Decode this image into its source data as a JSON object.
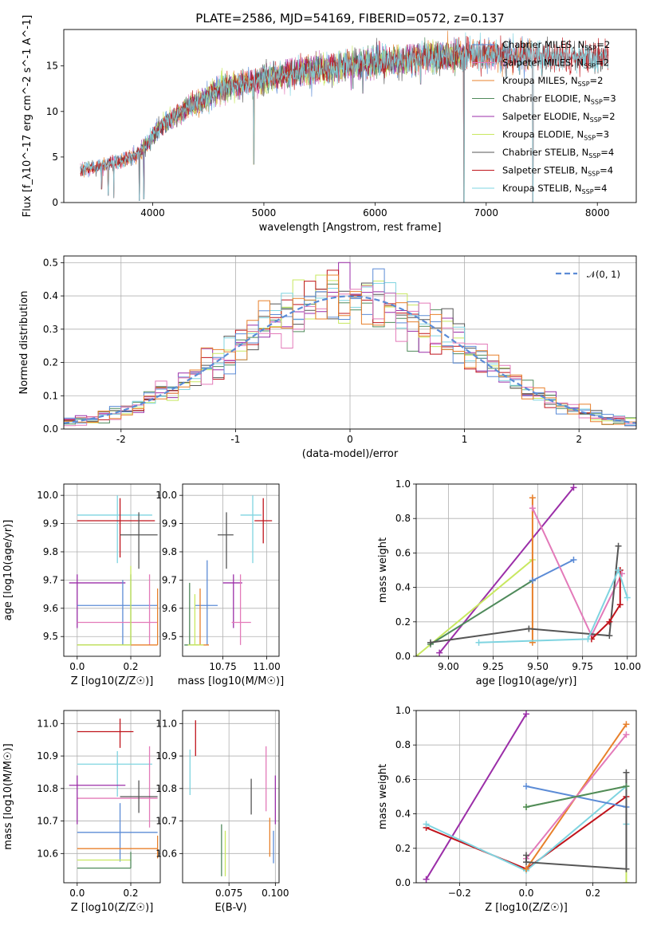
{
  "figure": {
    "title": "PLATE=2586, MJD=54169, FIBERID=0572, z=0.137"
  },
  "colors": {
    "blue": "#5b8bd6",
    "orange": "#e8802b",
    "green": "#4f8a5b",
    "red": "#c0141c",
    "purple": "#9b2ea8",
    "brown": "#8b5a2b",
    "pink": "#e37ab9",
    "gray": "#555555",
    "olive": "#c8e860",
    "cyan": "#7fd4e0"
  },
  "chart_data": [
    {
      "id": "spectrum",
      "type": "line",
      "xlabel": "wavelength [Angstrom, rest frame]",
      "ylabel": "Flux [f_λ10^-17 erg cm^-2 s^-1 A^-1]",
      "xlim": [
        3200,
        8350
      ],
      "ylim": [
        0,
        19
      ],
      "xticks": [
        4000,
        5000,
        6000,
        7000,
        8000
      ],
      "yticks": [
        0,
        5,
        10,
        15
      ],
      "legend_position": "top-right",
      "series": [
        {
          "name": "Chabrier MILES, N_SSP=2",
          "color_key": "blue",
          "x_range": [
            3350,
            7400
          ]
        },
        {
          "name": "Salpeter MILES, N_SSP=2",
          "color_key": "pink",
          "x_range": [
            3350,
            7400
          ]
        },
        {
          "name": "Kroupa MILES, N_SSP=2",
          "color_key": "orange",
          "x_range": [
            3350,
            7400
          ]
        },
        {
          "name": "Chabrier ELODIE, N_SSP=3",
          "color_key": "green",
          "x_range": [
            3900,
            6800
          ]
        },
        {
          "name": "Salpeter ELODIE, N_SSP=2",
          "color_key": "purple",
          "x_range": [
            3900,
            6800
          ]
        },
        {
          "name": "Kroupa ELODIE, N_SSP=3",
          "color_key": "olive",
          "x_range": [
            3900,
            6800
          ]
        },
        {
          "name": "Chabrier STELIB, N_SSP=4",
          "color_key": "gray",
          "x_range": [
            3350,
            8100
          ]
        },
        {
          "name": "Salpeter STELIB, N_SSP=4",
          "color_key": "red",
          "x_range": [
            3350,
            8100
          ]
        },
        {
          "name": "Kroupa STELIB, N_SSP=4",
          "color_key": "cyan",
          "x_range": [
            3350,
            8100
          ]
        }
      ],
      "continuum": {
        "x": [
          3350,
          3500,
          3700,
          3850,
          3950,
          4050,
          4300,
          4600,
          5000,
          5500,
          6000,
          6500,
          7000,
          7500,
          8000,
          8100
        ],
        "y": [
          3.6,
          3.9,
          4.4,
          5.2,
          6.4,
          8.2,
          10.3,
          12.3,
          13.6,
          14.7,
          15.4,
          16.0,
          16.2,
          16.1,
          15.9,
          15.9
        ]
      },
      "spikes": [
        {
          "x": 3540,
          "y": 1.5
        },
        {
          "x": 3600,
          "y": 0.8
        },
        {
          "x": 3650,
          "y": 0.5
        },
        {
          "x": 3880,
          "y": 0.2
        },
        {
          "x": 3920,
          "y": 0.4
        },
        {
          "x": 4910,
          "y": 4.2
        },
        {
          "x": 5800,
          "y": 12.5
        },
        {
          "x": 5890,
          "y": 12.0
        },
        {
          "x": 6410,
          "y": 13.0
        },
        {
          "x": 6800,
          "y": 0.0
        },
        {
          "x": 7180,
          "y": 13.6
        },
        {
          "x": 7420,
          "y": 0.0
        }
      ]
    },
    {
      "id": "residuals",
      "type": "histogram",
      "xlabel": "(data-model)/error",
      "ylabel": "Normed distribution",
      "xlim": [
        -2.5,
        2.5
      ],
      "ylim": [
        0,
        0.52
      ],
      "xticks": [
        -2,
        -1,
        0,
        1,
        2
      ],
      "yticks": [
        0.0,
        0.1,
        0.2,
        0.3,
        0.4,
        0.5
      ],
      "bin_width": 0.1,
      "bin_start": -2.5,
      "reference_curve": {
        "name": "𝒩(0, 1)",
        "color_key": "blue",
        "mean": 0,
        "sigma": 1
      },
      "legend_position": "top-right"
    },
    {
      "id": "age_vs_Z",
      "type": "errorbar",
      "xlabel": "Z [log10(Z/Z☉)]",
      "ylabel": "age  [log10(age/yr)]",
      "xlim": [
        -0.05,
        0.31
      ],
      "ylim": [
        9.43,
        10.04
      ],
      "xticks": [
        0.0,
        0.2
      ],
      "yticks": [
        9.5,
        9.6,
        9.7,
        9.8,
        9.9,
        10.0
      ],
      "points": [
        {
          "color_key": "cyan",
          "x": 0.15,
          "xerr": [
            0.15,
            0.13
          ],
          "y": 9.93,
          "yerr": [
            0.17,
            0.07
          ]
        },
        {
          "color_key": "red",
          "x": 0.16,
          "xerr": [
            0.16,
            0.13
          ],
          "y": 9.91,
          "yerr": [
            0.13,
            0.08
          ]
        },
        {
          "color_key": "gray",
          "x": 0.23,
          "xerr": [
            0.07,
            0.07
          ],
          "y": 9.86,
          "yerr": [
            0.12,
            0.08
          ]
        },
        {
          "color_key": "purple",
          "x": 0.0,
          "xerr": [
            0.03,
            0.18
          ],
          "y": 9.69,
          "yerr": [
            0.16,
            0.03
          ]
        },
        {
          "color_key": "blue",
          "x": 0.17,
          "xerr": [
            0.17,
            0.13
          ],
          "y": 9.61,
          "yerr": [
            0.14,
            0.09
          ]
        },
        {
          "color_key": "pink",
          "x": 0.27,
          "xerr": [
            0.27,
            0.03
          ],
          "y": 9.55,
          "yerr": [
            0.08,
            0.17
          ]
        },
        {
          "color_key": "orange",
          "x": 0.3,
          "xerr": [
            0.3,
            0.0
          ],
          "y": 9.47,
          "yerr": [
            0.0,
            0.2
          ]
        },
        {
          "color_key": "green",
          "x": 0.2,
          "xerr": [
            0.2,
            0.0
          ],
          "y": 9.47,
          "yerr": [
            0.0,
            0.25
          ]
        },
        {
          "color_key": "olive",
          "x": 0.2,
          "xerr": [
            0.2,
            0.0
          ],
          "y": 9.47,
          "yerr": [
            0.0,
            0.28
          ]
        }
      ]
    },
    {
      "id": "age_vs_mass",
      "type": "errorbar",
      "xlabel": "mass [log10(M/M☉)]",
      "ylabel": "",
      "xlim": [
        10.52,
        11.07
      ],
      "ylim": [
        9.43,
        10.04
      ],
      "xticks": [
        10.75,
        11.0
      ],
      "yticks": [
        9.5,
        9.6,
        9.7,
        9.8,
        9.9,
        10.0
      ],
      "points": [
        {
          "color_key": "cyan",
          "x": 10.92,
          "xerr": [
            0.07,
            0.05
          ],
          "y": 9.93,
          "yerr": [
            0.17,
            0.07
          ]
        },
        {
          "color_key": "red",
          "x": 10.98,
          "xerr": [
            0.05,
            0.05
          ],
          "y": 9.91,
          "yerr": [
            0.08,
            0.08
          ]
        },
        {
          "color_key": "gray",
          "x": 10.77,
          "xerr": [
            0.05,
            0.04
          ],
          "y": 9.86,
          "yerr": [
            0.12,
            0.08
          ]
        },
        {
          "color_key": "purple",
          "x": 10.81,
          "xerr": [
            0.06,
            0.05
          ],
          "y": 9.69,
          "yerr": [
            0.16,
            0.03
          ]
        },
        {
          "color_key": "blue",
          "x": 10.66,
          "xerr": [
            0.07,
            0.06
          ],
          "y": 9.61,
          "yerr": [
            0.14,
            0.16
          ]
        },
        {
          "color_key": "pink",
          "x": 10.85,
          "xerr": [
            0.05,
            0.06
          ],
          "y": 9.55,
          "yerr": [
            0.08,
            0.17
          ]
        },
        {
          "color_key": "orange",
          "x": 10.62,
          "xerr": [
            0.05,
            0.05
          ],
          "y": 9.47,
          "yerr": [
            0.0,
            0.2
          ]
        },
        {
          "color_key": "green",
          "x": 10.56,
          "xerr": [
            0.03,
            0.05
          ],
          "y": 9.47,
          "yerr": [
            0.0,
            0.22
          ]
        },
        {
          "color_key": "olive",
          "x": 10.59,
          "xerr": [
            0.04,
            0.05
          ],
          "y": 9.47,
          "yerr": [
            0.0,
            0.18
          ]
        }
      ]
    },
    {
      "id": "weight_vs_age",
      "type": "line",
      "xlabel": "age  [log10(age/yr)]",
      "ylabel": "mass weight",
      "xlim": [
        8.82,
        10.05
      ],
      "ylim": [
        0,
        1.0
      ],
      "xticks": [
        9.0,
        9.25,
        9.5,
        9.75,
        10.0
      ],
      "yticks": [
        0.0,
        0.2,
        0.4,
        0.6,
        0.8,
        1.0
      ],
      "series": [
        {
          "color_key": "purple",
          "x": [
            8.95,
            9.7
          ],
          "y": [
            0.02,
            0.98
          ]
        },
        {
          "color_key": "olive",
          "x": [
            8.82,
            9.47
          ],
          "y": [
            0.0,
            0.56
          ]
        },
        {
          "color_key": "green",
          "x": [
            8.9,
            9.47
          ],
          "y": [
            0.07,
            0.44
          ]
        },
        {
          "color_key": "orange",
          "x": [
            9.47,
            9.47
          ],
          "y": [
            0.08,
            0.92
          ]
        },
        {
          "color_key": "blue",
          "x": [
            9.47,
            9.7
          ],
          "y": [
            0.44,
            0.56
          ]
        },
        {
          "color_key": "pink",
          "x": [
            9.47,
            9.8,
            9.97
          ],
          "y": [
            0.86,
            0.12,
            0.48
          ]
        },
        {
          "color_key": "gray",
          "x": [
            8.9,
            9.45,
            9.9,
            9.95
          ],
          "y": [
            0.08,
            0.16,
            0.12,
            0.64
          ]
        },
        {
          "color_key": "red",
          "x": [
            9.8,
            9.9,
            9.96,
            9.96
          ],
          "y": [
            0.1,
            0.2,
            0.3,
            0.5
          ]
        },
        {
          "color_key": "cyan",
          "x": [
            9.17,
            9.78,
            9.95,
            10.0
          ],
          "y": [
            0.08,
            0.1,
            0.5,
            0.34
          ]
        }
      ]
    },
    {
      "id": "mass_vs_Z",
      "type": "errorbar",
      "xlabel": "Z [log10(Z/Z☉)]",
      "ylabel": "mass [log10(M/M☉)]",
      "xlim": [
        -0.05,
        0.31
      ],
      "ylim": [
        10.51,
        11.04
      ],
      "xticks": [
        0.0,
        0.2
      ],
      "yticks": [
        10.6,
        10.7,
        10.8,
        10.9,
        11.0
      ],
      "points": [
        {
          "color_key": "red",
          "x": 0.16,
          "xerr": [
            0.16,
            0.05
          ],
          "y": 10.975,
          "yerr": [
            0.05,
            0.04
          ]
        },
        {
          "color_key": "cyan",
          "x": 0.15,
          "xerr": [
            0.15,
            0.13
          ],
          "y": 10.875,
          "yerr": [
            0.1,
            0.04
          ]
        },
        {
          "color_key": "pink",
          "x": 0.27,
          "xerr": [
            0.27,
            0.03
          ],
          "y": 10.77,
          "yerr": [
            0.09,
            0.16
          ]
        },
        {
          "color_key": "purple",
          "x": 0.0,
          "xerr": [
            0.03,
            0.18
          ],
          "y": 10.81,
          "yerr": [
            0.12,
            0.03
          ]
        },
        {
          "color_key": "gray",
          "x": 0.23,
          "xerr": [
            0.07,
            0.07
          ],
          "y": 10.775,
          "yerr": [
            0.05,
            0.05
          ]
        },
        {
          "color_key": "blue",
          "x": 0.16,
          "xerr": [
            0.16,
            0.14
          ],
          "y": 10.665,
          "yerr": [
            0.09,
            0.09
          ]
        },
        {
          "color_key": "orange",
          "x": 0.3,
          "xerr": [
            0.3,
            0.0
          ],
          "y": 10.615,
          "yerr": [
            0.03,
            0.04
          ]
        },
        {
          "color_key": "olive",
          "x": 0.2,
          "xerr": [
            0.2,
            0.0
          ],
          "y": 10.58,
          "yerr": [
            0.0,
            0.0
          ]
        },
        {
          "color_key": "green",
          "x": 0.2,
          "xerr": [
            0.2,
            0.0
          ],
          "y": 10.555,
          "yerr": [
            0.0,
            0.05
          ]
        }
      ]
    },
    {
      "id": "mass_vs_EBV",
      "type": "errorbar",
      "xlabel": "E(B-V)",
      "ylabel": "",
      "xlim": [
        0.05,
        0.102
      ],
      "ylim": [
        10.51,
        11.04
      ],
      "xticks": [
        0.075,
        0.1
      ],
      "yticks": [
        10.6,
        10.7,
        10.8,
        10.9,
        11.0
      ],
      "points": [
        {
          "color_key": "red",
          "x": 0.057,
          "xerr": [
            0,
            0
          ],
          "y": 10.96,
          "yerr": [
            0.06,
            0.05
          ]
        },
        {
          "color_key": "cyan",
          "x": 0.054,
          "xerr": [
            0,
            0
          ],
          "y": 10.85,
          "yerr": [
            0.07,
            0.07
          ]
        },
        {
          "color_key": "gray",
          "x": 0.087,
          "xerr": [
            0,
            0
          ],
          "y": 10.77,
          "yerr": [
            0.05,
            0.06
          ]
        },
        {
          "color_key": "pink",
          "x": 0.095,
          "xerr": [
            0,
            0
          ],
          "y": 10.83,
          "yerr": [
            0.1,
            0.1
          ]
        },
        {
          "color_key": "purple",
          "x": 0.1,
          "xerr": [
            0,
            0
          ],
          "y": 10.77,
          "yerr": [
            0.08,
            0.07
          ]
        },
        {
          "color_key": "orange",
          "x": 0.097,
          "xerr": [
            0,
            0
          ],
          "y": 10.65,
          "yerr": [
            0.06,
            0.06
          ]
        },
        {
          "color_key": "blue",
          "x": 0.099,
          "xerr": [
            0,
            0
          ],
          "y": 10.62,
          "yerr": [
            0.05,
            0.05
          ]
        },
        {
          "color_key": "green",
          "x": 0.071,
          "xerr": [
            0,
            0
          ],
          "y": 10.61,
          "yerr": [
            0.08,
            0.08
          ]
        },
        {
          "color_key": "olive",
          "x": 0.073,
          "xerr": [
            0,
            0
          ],
          "y": 10.6,
          "yerr": [
            0.07,
            0.07
          ]
        }
      ]
    },
    {
      "id": "weight_vs_Z",
      "type": "line",
      "xlabel": "Z [log10(Z/Z☉)]",
      "ylabel": "mass weight",
      "xlim": [
        -0.33,
        0.33
      ],
      "ylim": [
        0,
        1.0
      ],
      "xticks": [
        -0.2,
        0.0,
        0.2
      ],
      "yticks": [
        0.0,
        0.2,
        0.4,
        0.6,
        0.8,
        1.0
      ],
      "series": [
        {
          "color_key": "purple",
          "x": [
            -0.3,
            0.0
          ],
          "y": [
            0.02,
            0.98
          ]
        },
        {
          "color_key": "red",
          "x": [
            -0.3,
            0.0,
            0.3
          ],
          "y": [
            0.32,
            0.08,
            0.5
          ]
        },
        {
          "color_key": "cyan",
          "x": [
            -0.3,
            0.0,
            0.3,
            0.3
          ],
          "y": [
            0.34,
            0.07,
            0.56,
            0.34
          ]
        },
        {
          "color_key": "blue",
          "x": [
            0.0,
            0.3
          ],
          "y": [
            0.56,
            0.44
          ]
        },
        {
          "color_key": "olive",
          "x": [
            0.0,
            0.3,
            0.3
          ],
          "y": [
            0.44,
            0.56,
            0.0
          ]
        },
        {
          "color_key": "orange",
          "x": [
            0.0,
            0.3
          ],
          "y": [
            0.08,
            0.92
          ]
        },
        {
          "color_key": "pink",
          "x": [
            0.0,
            0.3
          ],
          "y": [
            0.14,
            0.86
          ]
        },
        {
          "color_key": "gray",
          "x": [
            0.0,
            0.0,
            0.3,
            0.3
          ],
          "y": [
            0.16,
            0.12,
            0.08,
            0.64
          ]
        },
        {
          "color_key": "green",
          "x": [
            0.0,
            0.3
          ],
          "y": [
            0.44,
            0.56
          ]
        }
      ]
    }
  ]
}
